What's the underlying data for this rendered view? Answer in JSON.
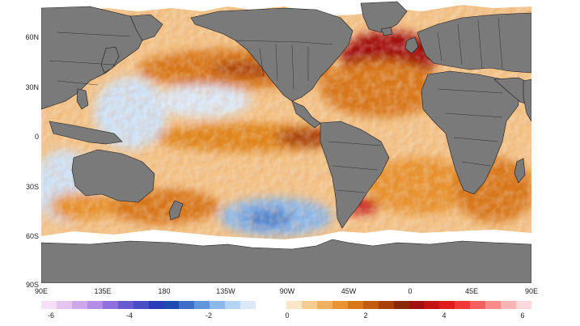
{
  "map": {
    "type": "sea-surface-temperature-anomaly",
    "lat_labels": [
      "60N",
      "30N",
      "0",
      "30S",
      "60S",
      "90S"
    ],
    "lon_labels": [
      "90E",
      "135E",
      "180",
      "135W",
      "90W",
      "45W",
      "0",
      "45E",
      "90E"
    ],
    "lon_range": [
      90,
      450
    ],
    "lat_range": [
      -90,
      80
    ],
    "colors": {
      "land": "#7a7a7a",
      "ice": "#ffffff",
      "border": "#1a1a1a"
    }
  },
  "colorbar": {
    "tick_labels": [
      "-6",
      "-4",
      "-2",
      "0",
      "2",
      "4",
      "6"
    ],
    "range": [
      -6,
      6
    ],
    "colors": [
      "#f7e0f7",
      "#e8c4f0",
      "#cfa8ec",
      "#b48ee6",
      "#9070dc",
      "#6a5ad0",
      "#4a4cc4",
      "#2a3cb8",
      "#1f4bb0",
      "#3d6fc8",
      "#6196dc",
      "#8cb8ea",
      "#b4d4f4",
      "#dce9f8",
      "#ffffff",
      "#ffffff",
      "#fbe6c8",
      "#f7cc90",
      "#f0b060",
      "#e89430",
      "#d87818",
      "#c45c10",
      "#a84008",
      "#8a2804",
      "#a01010",
      "#c41414",
      "#e01c1c",
      "#f03838",
      "#f46060",
      "#f88a8a",
      "#fab4b4",
      "#fdd8d8"
    ]
  }
}
